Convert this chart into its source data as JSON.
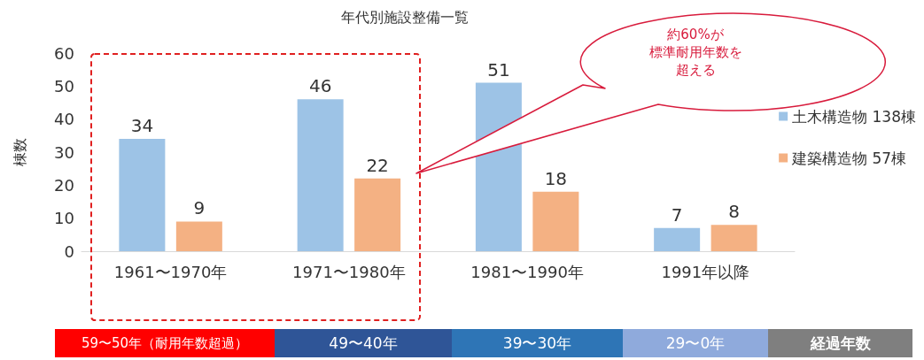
{
  "chart_data": {
    "type": "bar",
    "title": "年代別施設整備一覧",
    "ylabel": "棟数",
    "categories": [
      "1961〜1970年",
      "1971〜1980年",
      "1981〜1990年",
      "1991年以降"
    ],
    "series": [
      {
        "name": "土木構造物 138棟",
        "color": "#9dc3e6",
        "values": [
          34,
          46,
          51,
          7
        ]
      },
      {
        "name": "建築構造物 57棟",
        "color": "#f4b183",
        "values": [
          9,
          22,
          18,
          8
        ]
      }
    ],
    "ylim": [
      0,
      60
    ],
    "yticks": [
      0,
      10,
      20,
      30,
      40,
      50,
      60
    ],
    "grid": false,
    "legend": "right",
    "data_labels": true,
    "annotations": [
      "約60%が",
      "標準耐用年数を",
      "超える",
      "59〜50年（耐用年数超過）",
      "49〜40年",
      "39〜30年",
      "29〜0年",
      "経過年数"
    ]
  }
}
